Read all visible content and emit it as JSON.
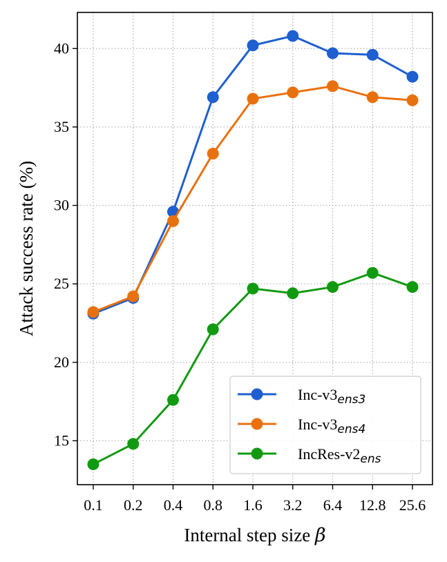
{
  "chart_data": {
    "type": "line",
    "title": "",
    "x_categories": [
      "0.1",
      "0.2",
      "0.4",
      "0.8",
      "1.6",
      "3.2",
      "6.4",
      "12.8",
      "25.6"
    ],
    "xlabel": {
      "text": "Internal step size ",
      "symbol": "β"
    },
    "ylabel": "Attack success rate (%)",
    "ylim": [
      12.2,
      42.3
    ],
    "yticks": [
      15,
      20,
      25,
      30,
      35,
      40
    ],
    "grid": true,
    "legend_position": "lower-right",
    "series": [
      {
        "name": "Inc-v3",
        "subscript": "ens3",
        "color": "#1f5fcf",
        "values": [
          23.1,
          24.1,
          29.6,
          36.9,
          40.2,
          40.8,
          39.7,
          39.6,
          38.2
        ]
      },
      {
        "name": "Inc-v3",
        "subscript": "ens4",
        "color": "#e8710f",
        "values": [
          23.2,
          24.2,
          29.0,
          33.3,
          36.8,
          37.2,
          37.6,
          36.9,
          36.7
        ]
      },
      {
        "name": "IncRes-v2",
        "subscript": "ens",
        "color": "#119a11",
        "values": [
          13.5,
          14.8,
          17.6,
          22.1,
          24.7,
          24.4,
          24.8,
          25.7,
          24.8
        ]
      }
    ]
  }
}
